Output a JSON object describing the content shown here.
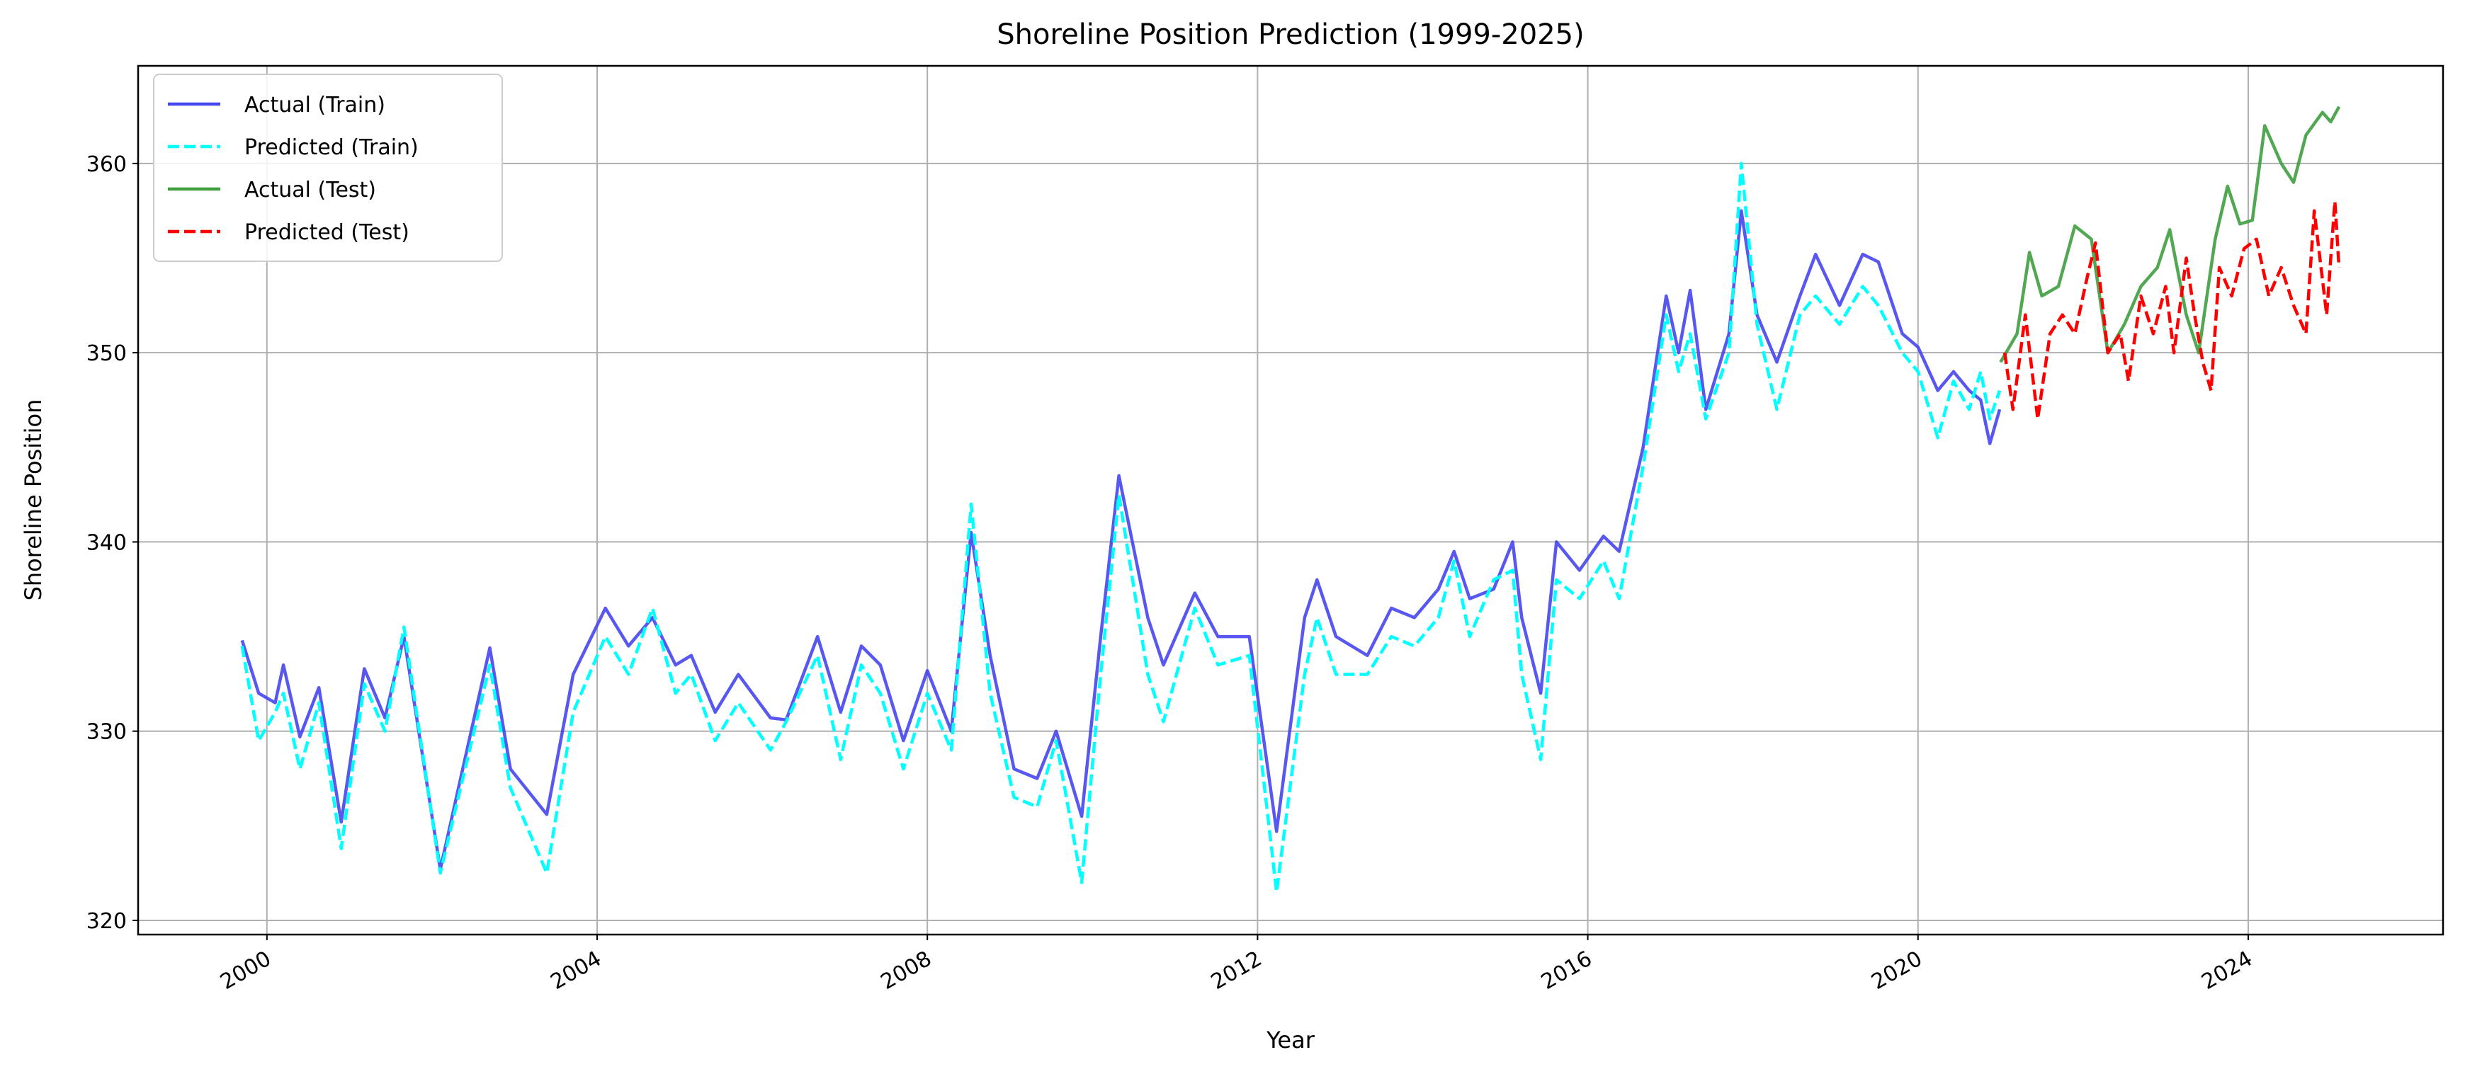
{
  "chart_data": {
    "type": "line",
    "title": "Shoreline Position Prediction (1999-2025)",
    "x_label": "Year",
    "y_label": "Shoreline Position",
    "xlim": [
      1998.44,
      2026.36
    ],
    "ylim": [
      319.25,
      365.16
    ],
    "xticks": [
      2000,
      2004,
      2008,
      2012,
      2016,
      2020,
      2024
    ],
    "yticks": [
      320,
      330,
      340,
      350,
      360
    ],
    "grid": true,
    "legend": "upper left",
    "series": [
      {
        "name": "Actual (Train)",
        "color": "#4646ee",
        "style": "solid",
        "x": [
          1999.7,
          1999.9,
          2000.1,
          2000.2,
          2000.4,
          2000.63,
          2000.9,
          2001.18,
          2001.43,
          2001.66,
          2002.1,
          2002.7,
          2002.95,
          2003.39,
          2003.71,
          2004.1,
          2004.38,
          2004.67,
          2004.95,
          2005.14,
          2005.43,
          2005.71,
          2006.1,
          2006.29,
          2006.67,
          2006.95,
          2007.2,
          2007.43,
          2007.71,
          2008.0,
          2008.29,
          2008.53,
          2008.76,
          2009.05,
          2009.33,
          2009.56,
          2009.87,
          2010.1,
          2010.32,
          2010.67,
          2010.86,
          2011.24,
          2011.52,
          2011.9,
          2012.23,
          2012.57,
          2012.72,
          2012.95,
          2013.33,
          2013.62,
          2013.9,
          2014.19,
          2014.38,
          2014.57,
          2014.86,
          2015.09,
          2015.2,
          2015.43,
          2015.62,
          2015.9,
          2016.19,
          2016.38,
          2016.67,
          2016.95,
          2017.1,
          2017.24,
          2017.43,
          2017.71,
          2017.86,
          2018.05,
          2018.29,
          2018.57,
          2018.76,
          2019.05,
          2019.33,
          2019.52,
          2019.81,
          2020.0,
          2020.24,
          2020.43,
          2020.62,
          2020.76,
          2020.87,
          2020.99
        ],
        "values": [
          334.8,
          332,
          331.5,
          333.5,
          329.7,
          332.3,
          325.2,
          333.3,
          330.7,
          335,
          322.7,
          334.4,
          328,
          325.6,
          333,
          336.5,
          334.5,
          336,
          333.5,
          334,
          331,
          333,
          330.7,
          330.6,
          335,
          331,
          334.5,
          333.5,
          329.5,
          333.2,
          330,
          340.5,
          334,
          328,
          327.5,
          330,
          325.5,
          335,
          343.5,
          336,
          333.5,
          337.3,
          335,
          335,
          324.7,
          336,
          338,
          335,
          334,
          336.5,
          336,
          337.5,
          339.5,
          337,
          337.5,
          340,
          336,
          332,
          340,
          338.5,
          340.3,
          339.5,
          345,
          353,
          350,
          353.3,
          347,
          351,
          357.5,
          352,
          349.5,
          353,
          355.2,
          352.5,
          355.2,
          354.8,
          351,
          350.3,
          348,
          349,
          348,
          347.5,
          345.2,
          347
        ]
      },
      {
        "name": "Predicted (Train)",
        "color": "#00ffff",
        "style": "dashed",
        "x": [
          1999.7,
          1999.9,
          2000.1,
          2000.2,
          2000.4,
          2000.63,
          2000.9,
          2001.18,
          2001.43,
          2001.66,
          2002.1,
          2002.7,
          2002.95,
          2003.39,
          2003.71,
          2004.1,
          2004.38,
          2004.67,
          2004.95,
          2005.14,
          2005.43,
          2005.71,
          2006.1,
          2006.29,
          2006.67,
          2006.95,
          2007.2,
          2007.43,
          2007.71,
          2008.0,
          2008.29,
          2008.53,
          2008.76,
          2009.05,
          2009.33,
          2009.56,
          2009.87,
          2010.1,
          2010.32,
          2010.67,
          2010.86,
          2011.24,
          2011.52,
          2011.9,
          2012.23,
          2012.57,
          2012.72,
          2012.95,
          2013.33,
          2013.62,
          2013.9,
          2014.19,
          2014.38,
          2014.57,
          2014.86,
          2015.09,
          2015.2,
          2015.43,
          2015.62,
          2015.9,
          2016.19,
          2016.38,
          2016.67,
          2016.95,
          2017.1,
          2017.24,
          2017.43,
          2017.71,
          2017.86,
          2018.05,
          2018.29,
          2018.57,
          2018.76,
          2019.05,
          2019.33,
          2019.52,
          2019.81,
          2020.0,
          2020.24,
          2020.43,
          2020.62,
          2020.76,
          2020.87,
          2020.99
        ],
        "values": [
          334.5,
          329.5,
          331,
          332,
          328,
          331.5,
          323.8,
          332.5,
          330,
          335.5,
          322.5,
          333.5,
          327,
          322.5,
          331,
          335,
          333,
          336.5,
          332,
          333,
          329.5,
          331.5,
          329,
          330.5,
          334,
          328.5,
          333.5,
          332,
          328,
          332,
          329,
          342,
          332,
          326.5,
          326,
          329.5,
          322,
          333,
          342.5,
          333,
          330.5,
          336.5,
          333.5,
          334,
          321.5,
          333,
          336,
          333,
          333,
          335,
          334.5,
          336,
          339,
          335,
          338,
          338.5,
          333,
          328.5,
          338,
          337,
          339,
          337,
          344,
          352,
          349,
          351,
          346.5,
          350,
          360,
          351.5,
          347,
          352,
          353,
          351.5,
          353.5,
          352.5,
          350,
          349,
          345.5,
          348.5,
          347,
          349,
          346.5,
          348
        ]
      },
      {
        "name": "Actual (Test)",
        "color": "#3f9f3f",
        "style": "solid",
        "x": [
          2021.0,
          2021.2,
          2021.35,
          2021.5,
          2021.7,
          2021.9,
          2022.1,
          2022.3,
          2022.5,
          2022.7,
          2022.9,
          2023.05,
          2023.25,
          2023.4,
          2023.6,
          2023.75,
          2023.9,
          2024.05,
          2024.2,
          2024.4,
          2024.55,
          2024.7,
          2024.9,
          2025.0,
          2025.1
        ],
        "values": [
          349.5,
          351,
          355.3,
          353,
          353.5,
          356.7,
          356,
          350,
          351.5,
          353.5,
          354.5,
          356.5,
          352,
          350,
          356,
          358.8,
          356.8,
          357,
          362,
          360,
          359,
          361.5,
          362.7,
          362.2,
          363
        ]
      },
      {
        "name": "Predicted (Test)",
        "color": "#ff0000",
        "style": "dashed",
        "x": [
          2021.05,
          2021.15,
          2021.3,
          2021.45,
          2021.6,
          2021.75,
          2021.9,
          2022.05,
          2022.15,
          2022.3,
          2022.45,
          2022.55,
          2022.7,
          2022.85,
          2023.0,
          2023.1,
          2023.25,
          2023.35,
          2023.45,
          2023.55,
          2023.65,
          2023.8,
          2023.95,
          2024.1,
          2024.25,
          2024.4,
          2024.55,
          2024.7,
          2024.8,
          2024.95,
          2025.05,
          2025.1
        ],
        "values": [
          350,
          347,
          352,
          346.5,
          351,
          352,
          351,
          354,
          355.8,
          350,
          351,
          348.5,
          353,
          351,
          353.5,
          350,
          355,
          352,
          349.5,
          348,
          354.5,
          353,
          355.5,
          356,
          353,
          354.5,
          352.5,
          351,
          357.5,
          352,
          358,
          354.5
        ]
      }
    ]
  }
}
